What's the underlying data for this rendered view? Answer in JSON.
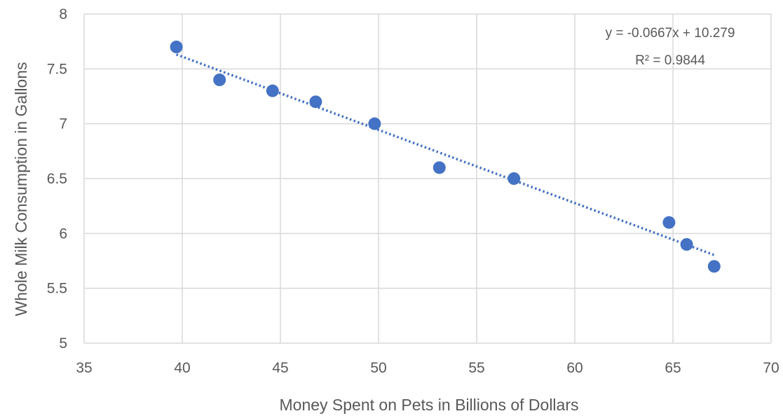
{
  "chart_data": {
    "type": "scatter",
    "title": "",
    "xlabel": "Money Spent on Pets in Billions of Dollars",
    "ylabel": "Whole Milk Consumption in Gallons",
    "xlim": [
      35,
      70
    ],
    "ylim": [
      5,
      8
    ],
    "x_ticks": [
      35,
      40,
      45,
      50,
      55,
      60,
      65,
      70
    ],
    "y_ticks": [
      5,
      5.5,
      6,
      6.5,
      7,
      7.5,
      8
    ],
    "x_tick_labels": [
      "35",
      "40",
      "45",
      "50",
      "55",
      "60",
      "65",
      "70"
    ],
    "y_tick_labels": [
      "5",
      "5.5",
      "6",
      "6.5",
      "7",
      "7.5",
      "8"
    ],
    "grid": true,
    "legend": "none",
    "series": [
      {
        "color": "#4472c4",
        "points": [
          {
            "x": 39.7,
            "y": 7.7
          },
          {
            "x": 41.9,
            "y": 7.4
          },
          {
            "x": 44.6,
            "y": 7.3
          },
          {
            "x": 46.8,
            "y": 7.2
          },
          {
            "x": 49.8,
            "y": 7.0
          },
          {
            "x": 53.1,
            "y": 6.6
          },
          {
            "x": 56.9,
            "y": 6.5
          },
          {
            "x": 64.8,
            "y": 6.1
          },
          {
            "x": 65.7,
            "y": 5.9
          },
          {
            "x": 67.1,
            "y": 5.7
          }
        ]
      }
    ],
    "trendline": {
      "type": "linear",
      "style": "dotted",
      "color": "#4472c4",
      "slope": -0.0667,
      "intercept": 10.279,
      "x_range": [
        39.7,
        67.1
      ],
      "equation": "y = -0.0667x + 10.279",
      "r_squared": "R² = 0.9844"
    },
    "colors": {
      "gridline": "#d9d9d9",
      "text": "#595959",
      "marker": "#4472c4"
    }
  }
}
